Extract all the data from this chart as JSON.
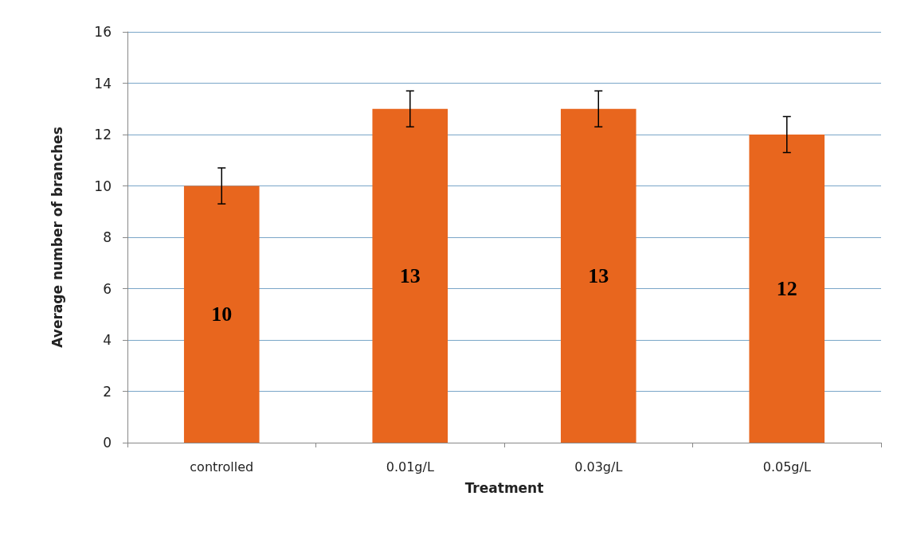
{
  "chart_data": {
    "type": "bar",
    "xlabel": "Treatment",
    "ylabel": "Average number of branches",
    "categories": [
      "controlled",
      "0.01g/L",
      "0.03g/L",
      "0.05g/L"
    ],
    "values": [
      10,
      13,
      13,
      12
    ],
    "errors": [
      0.7,
      0.7,
      0.7,
      0.7
    ],
    "color": "#e8661e",
    "data_labels": true,
    "ylim": [
      0,
      16
    ],
    "yticks": [
      0,
      2,
      4,
      6,
      8,
      10,
      12,
      14,
      16
    ],
    "grid": "y"
  }
}
